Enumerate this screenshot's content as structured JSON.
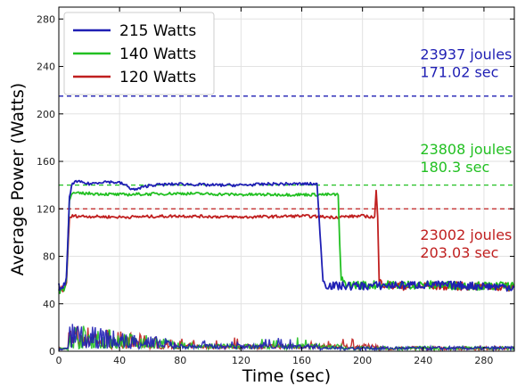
{
  "chart_data": {
    "type": "line",
    "xlabel": "Time (sec)",
    "ylabel": "Average Power (Watts)",
    "xlim": [
      0,
      300
    ],
    "ylim": [
      0,
      290
    ],
    "xticks": [
      0,
      40,
      80,
      120,
      160,
      200,
      240,
      280
    ],
    "yticks": [
      0,
      40,
      80,
      120,
      160,
      200,
      240,
      280
    ],
    "grid": true,
    "legend_position": "top-left",
    "series": [
      {
        "name": "215 Watts",
        "color": "#1f1fb4",
        "power_x": [
          0,
          4,
          5,
          7,
          9,
          12,
          20,
          30,
          40,
          44,
          46,
          50,
          60,
          80,
          100,
          120,
          140,
          160,
          170,
          172,
          174,
          176,
          180,
          200,
          240,
          280,
          300
        ],
        "power_y": [
          54,
          55,
          60,
          130,
          142,
          143,
          141,
          143,
          142,
          140,
          138,
          136,
          140,
          141,
          140,
          140,
          141,
          141,
          141,
          100,
          60,
          56,
          55,
          55,
          56,
          55,
          54
        ],
        "limit": 215,
        "limit_color": "#1f1fb4"
      },
      {
        "name": "140 Watts",
        "color": "#22c022",
        "power_x": [
          0,
          4,
          5,
          7,
          9,
          20,
          40,
          80,
          120,
          160,
          180,
          184,
          185,
          186,
          190,
          240,
          280,
          300
        ],
        "power_y": [
          52,
          53,
          60,
          128,
          133,
          133,
          132,
          133,
          132,
          132,
          132,
          132,
          90,
          60,
          56,
          56,
          55,
          55
        ],
        "limit": 140,
        "limit_color": "#22c022"
      },
      {
        "name": "120 Watts",
        "color": "#c01f1f",
        "power_x": [
          0,
          4,
          5,
          7,
          9,
          40,
          80,
          120,
          160,
          180,
          200,
          208,
          209,
          210,
          211,
          220,
          260,
          300
        ],
        "power_y": [
          52,
          53,
          60,
          112,
          114,
          113,
          114,
          113,
          114,
          113,
          114,
          113,
          135,
          113,
          58,
          55,
          55,
          54
        ],
        "limit": 120,
        "limit_color": "#c01f1f"
      }
    ],
    "annotations": [
      {
        "lines": [
          "23937 joules",
          "171.02 sec"
        ],
        "color": "#1f1fb4",
        "x": 238,
        "y": 246
      },
      {
        "lines": [
          "23808 joules",
          "180.3 sec"
        ],
        "color": "#22c022",
        "x": 238,
        "y": 166
      },
      {
        "lines": [
          "23002 joules",
          "203.03 sec"
        ],
        "color": "#c01f1f",
        "x": 238,
        "y": 94
      }
    ]
  }
}
